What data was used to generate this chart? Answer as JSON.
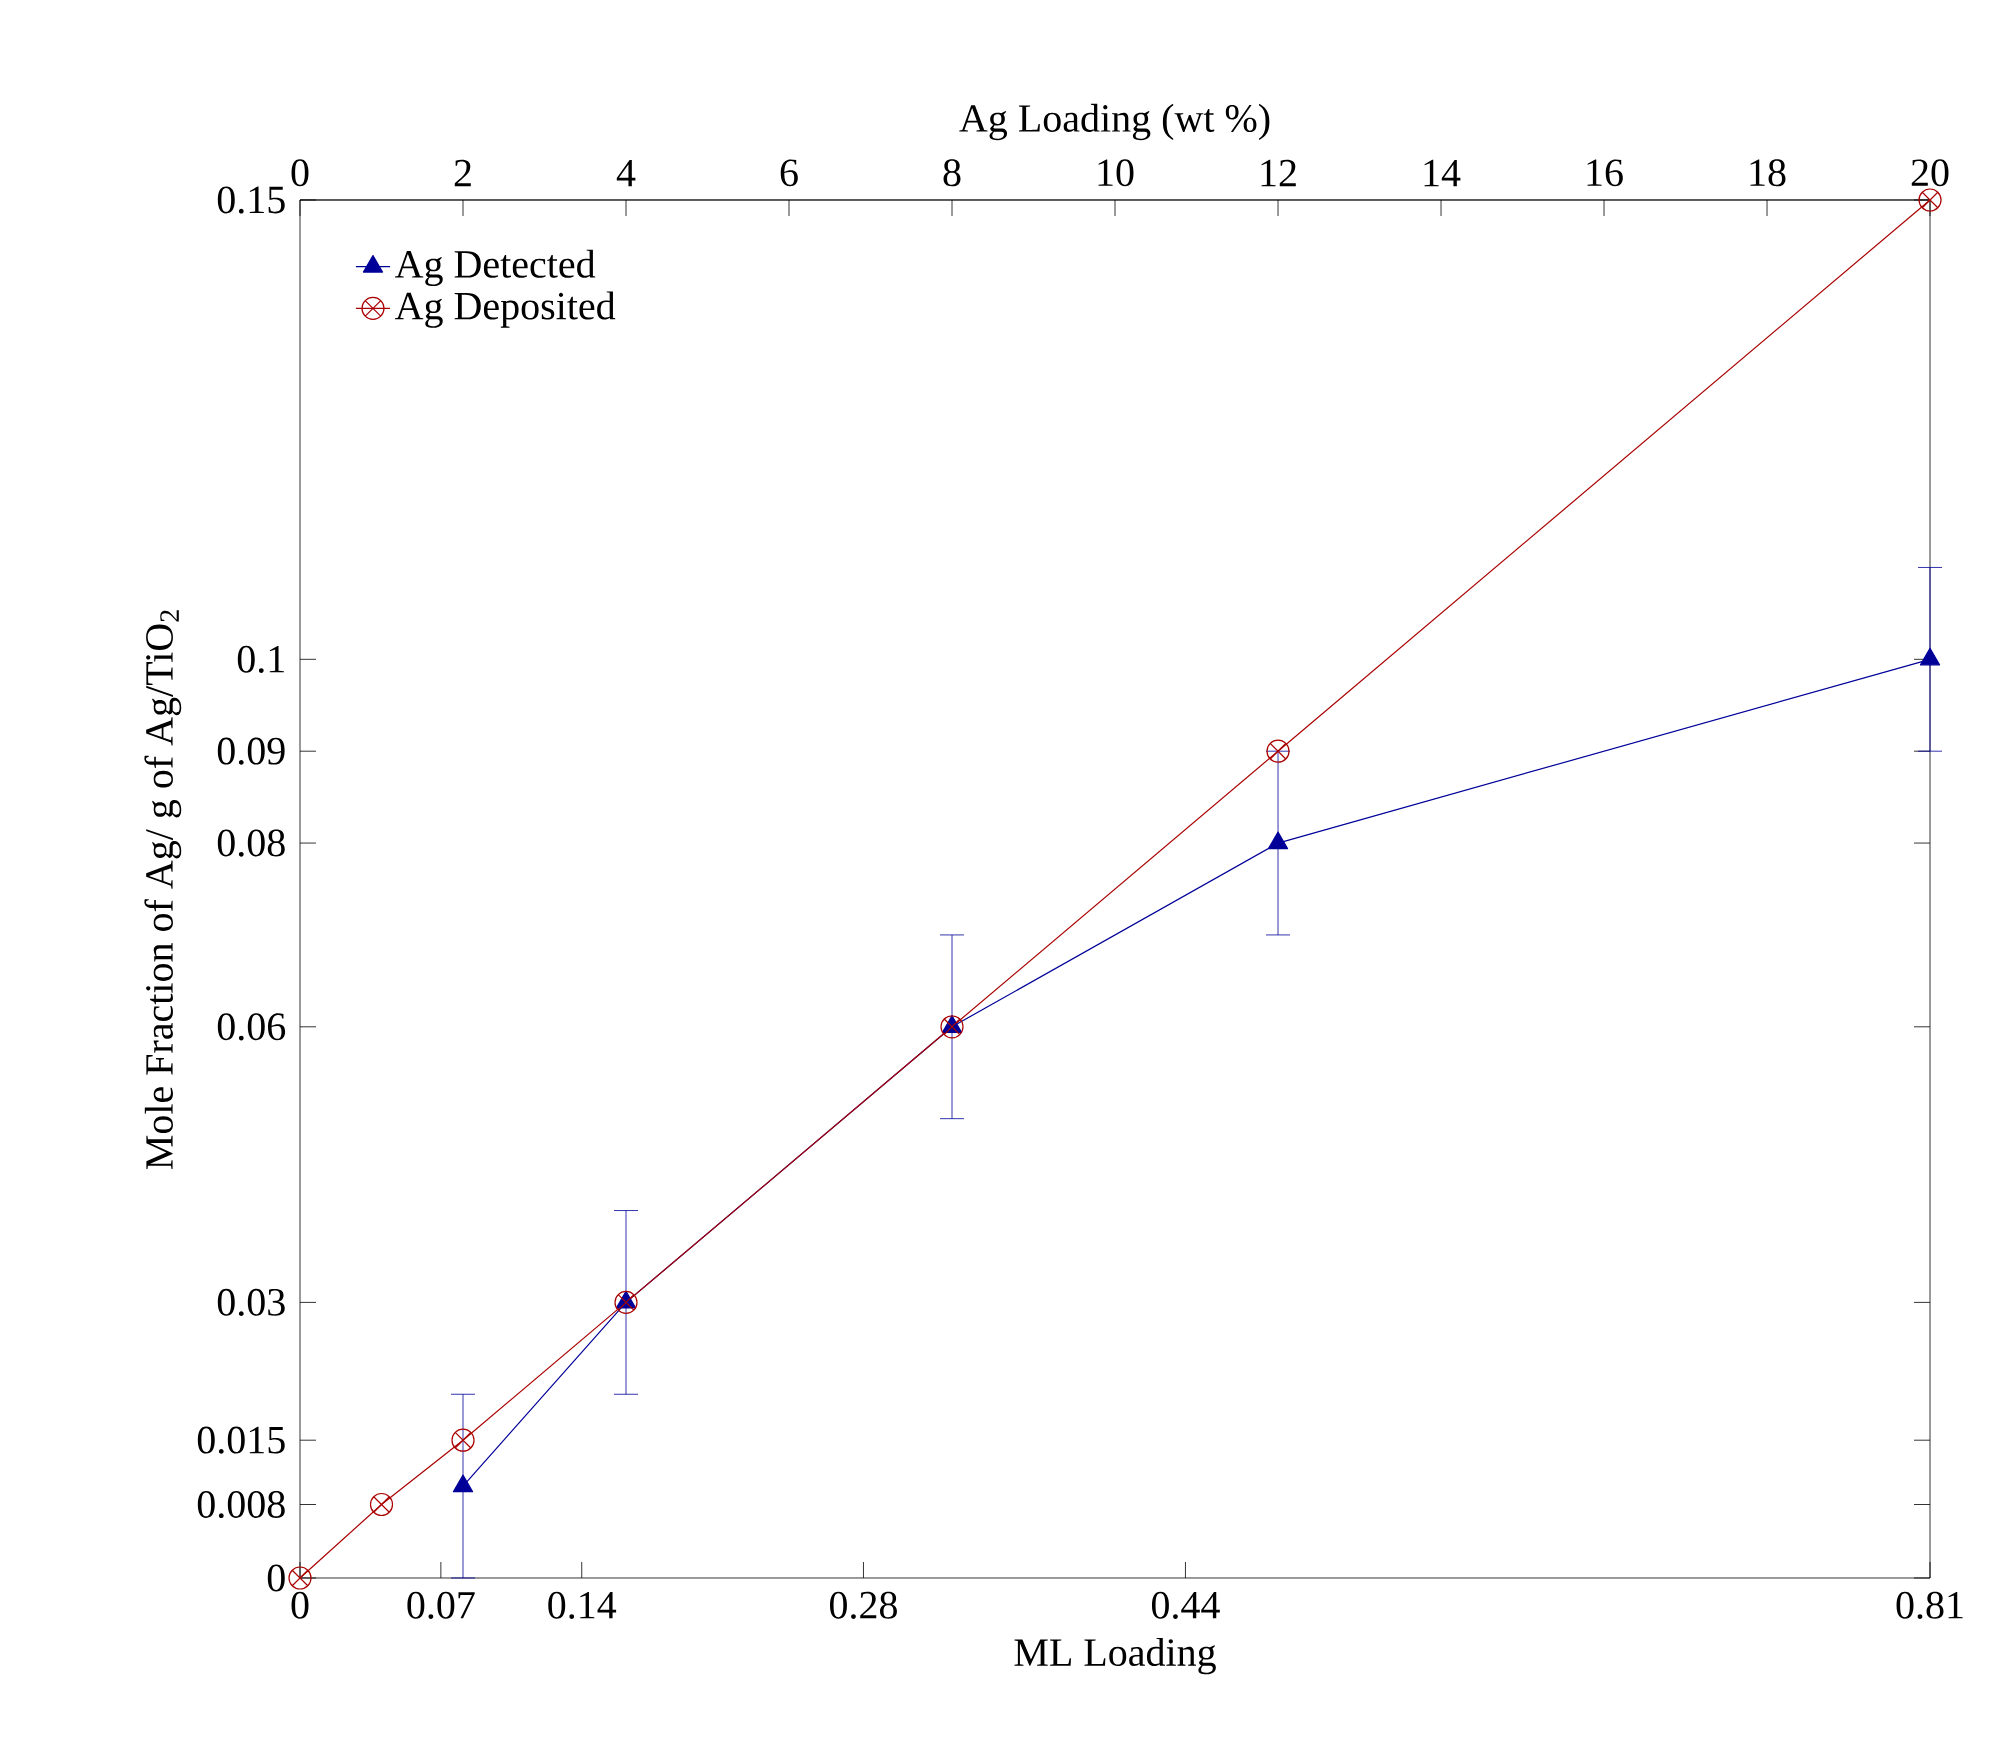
{
  "chart_data": {
    "type": "line",
    "xlabel": "ML Loading",
    "x2label": "Ag Loading (wt %)",
    "ylabel": "Mole Fraction of Ag/ g of Ag/TiO$_{2}$",
    "xlim": [
      0,
      0.81
    ],
    "xticks": [
      0,
      0.07,
      0.14,
      0.28,
      0.44,
      0.81
    ],
    "x2lim": [
      0,
      20
    ],
    "x2ticks": [
      0,
      2,
      4,
      6,
      8,
      10,
      12,
      14,
      16,
      18,
      20
    ],
    "ylim": [
      0,
      0.15
    ],
    "yticks": [
      0,
      0.008,
      0.015,
      0.03,
      0.06,
      0.08,
      0.09,
      0.1,
      0.15
    ],
    "legend": "top left",
    "line_style": "solid",
    "grid": false,
    "series": [
      {
        "name": "Ag Detected",
        "color": "#000099",
        "axis": "x2",
        "marker": "triangle",
        "x": [
          2,
          4,
          8,
          12,
          20
        ],
        "values": [
          0.01,
          0.03,
          0.06,
          0.08,
          0.1
        ],
        "errors": [
          0.01,
          0.01,
          0.01,
          0.01,
          0.01
        ]
      },
      {
        "name": "Ag Deposited",
        "color": "#aa0000",
        "axis": "x2",
        "marker": "cross",
        "x": [
          0,
          1,
          2,
          4,
          8,
          12,
          20
        ],
        "values": [
          0,
          0.008,
          0.015,
          0.03,
          0.06,
          0.09,
          0.15
        ]
      }
    ]
  }
}
